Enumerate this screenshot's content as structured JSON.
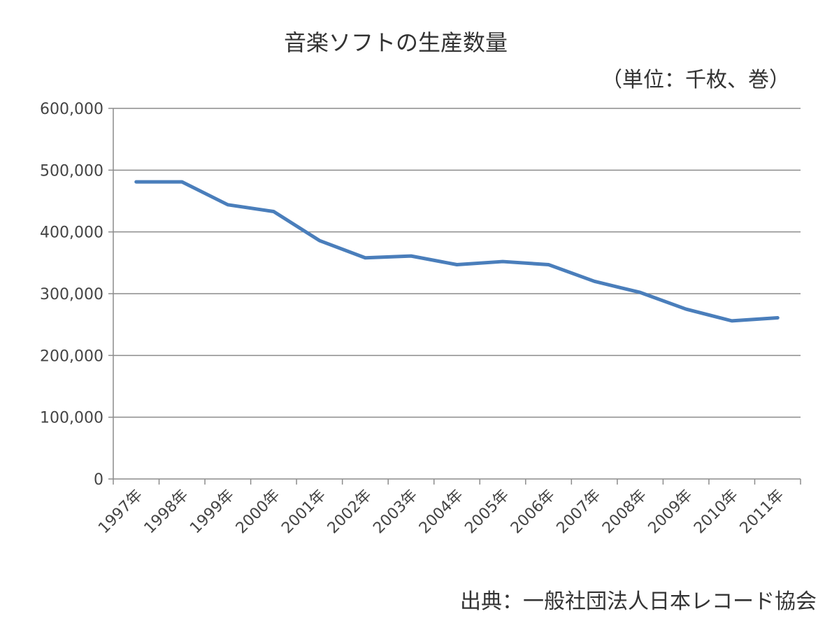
{
  "chart_data": {
    "type": "line",
    "title": "音楽ソフトの生産数量",
    "unit_label": "（単位：千枚、巻）",
    "source": "出典：一般社団法人日本レコード協会",
    "categories": [
      "1997年",
      "1998年",
      "1999年",
      "2000年",
      "2001年",
      "2002年",
      "2003年",
      "2004年",
      "2005年",
      "2006年",
      "2007年",
      "2008年",
      "2009年",
      "2010年",
      "2011年"
    ],
    "series": [
      {
        "values": [
          481000,
          481000,
          444000,
          433000,
          386000,
          358000,
          361000,
          347000,
          352000,
          347000,
          320000,
          302000,
          275000,
          256000,
          261000
        ],
        "color": "#4a7ebb"
      }
    ],
    "ylim": [
      0,
      600000
    ],
    "yticks": [
      0,
      100000,
      200000,
      300000,
      400000,
      500000,
      600000
    ],
    "ytick_labels": [
      "0",
      "100,000",
      "200,000",
      "300,000",
      "400,000",
      "500,000",
      "600,000"
    ],
    "grid": true,
    "legend": "none"
  }
}
